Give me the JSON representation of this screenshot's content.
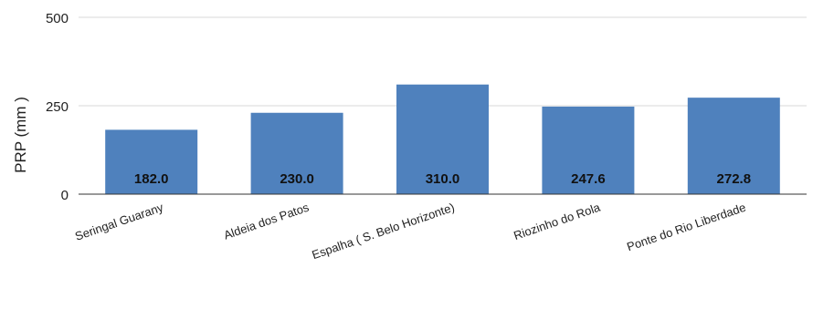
{
  "chart_data": {
    "type": "bar",
    "title": "",
    "xlabel": "",
    "ylabel": "PRP (mm )",
    "ylim": [
      0,
      500
    ],
    "yticks": [
      0,
      250,
      500
    ],
    "categories": [
      "Seringal Guarany",
      "Aldeia dos Patos",
      "Espalha ( S. Belo Horizonte)",
      "Riozinho do Rola",
      "Ponte do Rio Liberdade"
    ],
    "values": [
      182.0,
      230.0,
      310.0,
      247.6,
      272.8
    ],
    "data_labels": [
      "182.0",
      "230.0",
      "310.0",
      "247.6",
      "272.8"
    ],
    "bar_color": "#4f81bd",
    "grid": true,
    "legend": "none"
  }
}
